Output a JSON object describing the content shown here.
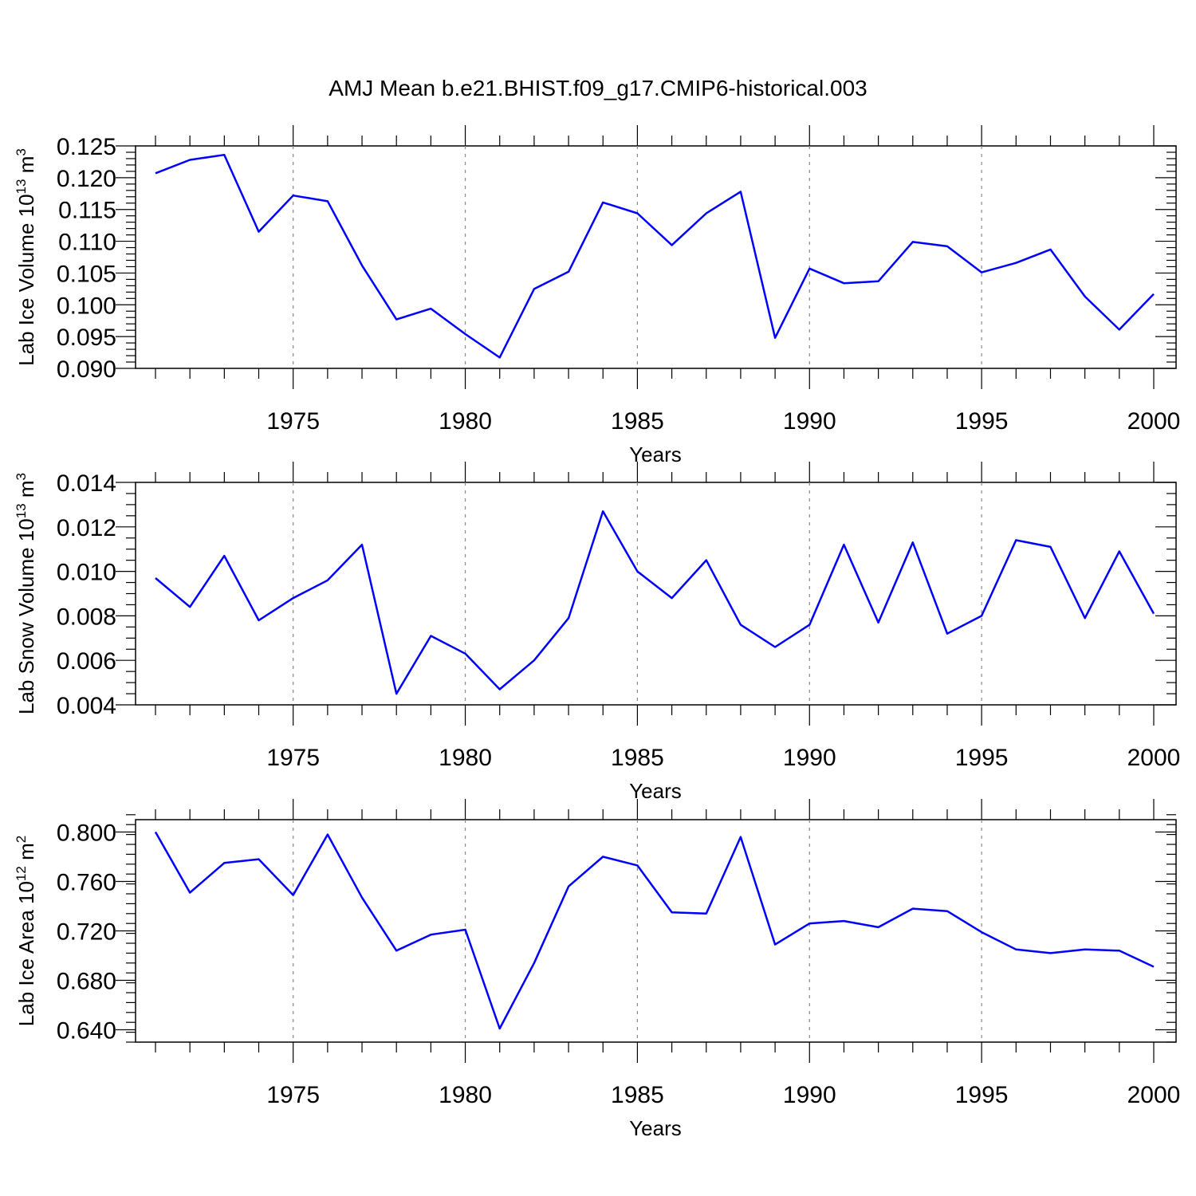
{
  "figure": {
    "title": "AMJ Mean b.e21.BHIST.f09_g17.CMIP6-historical.003"
  },
  "chart_data": [
    {
      "type": "line",
      "title": "AMJ Mean b.e21.BHIST.f09_g17.CMIP6-historical.003",
      "xlabel": "Years",
      "ylabel_main": "Lab Ice Volume 10",
      "ylabel_exp": "13",
      "ylabel_unit": " m",
      "ylabel_unit_exp": "3",
      "xlim": [
        1971,
        2000
      ],
      "ylim": [
        0.09,
        0.125
      ],
      "yticks": [
        0.09,
        0.095,
        0.1,
        0.105,
        0.11,
        0.115,
        0.12,
        0.125
      ],
      "ytick_labels": [
        "0.090",
        "0.095",
        "0.100",
        "0.105",
        "0.110",
        "0.115",
        "0.120",
        "0.125"
      ],
      "yminor_step": 0.001,
      "xticks": [
        1975,
        1980,
        1985,
        1990,
        1995,
        2000
      ],
      "xtick_labels": [
        "1975",
        "1980",
        "1985",
        "1990",
        "1995",
        "2000"
      ],
      "grid_x": true,
      "color": "#0000ff",
      "x": [
        1971,
        1972,
        1973,
        1974,
        1975,
        1976,
        1977,
        1978,
        1979,
        1980,
        1981,
        1982,
        1983,
        1984,
        1985,
        1986,
        1987,
        1988,
        1989,
        1990,
        1991,
        1992,
        1993,
        1994,
        1995,
        1996,
        1997,
        1998,
        1999,
        2000
      ],
      "y": [
        0.1207,
        0.1228,
        0.1236,
        0.1115,
        0.1172,
        0.1163,
        0.1062,
        0.0977,
        0.0994,
        0.0954,
        0.0917,
        0.1025,
        0.1052,
        0.1161,
        0.1144,
        0.1094,
        0.1144,
        0.1178,
        0.0948,
        0.1057,
        0.1034,
        0.1037,
        0.1099,
        0.1092,
        0.1051,
        0.1066,
        0.1087,
        0.1013,
        0.0961,
        0.1017
      ]
    },
    {
      "type": "line",
      "xlabel": "Years",
      "ylabel_main": "Lab Snow Volume 10",
      "ylabel_exp": "13",
      "ylabel_unit": " m",
      "ylabel_unit_exp": "3",
      "xlim": [
        1971,
        2000
      ],
      "ylim": [
        0.004,
        0.014
      ],
      "yticks": [
        0.004,
        0.006,
        0.008,
        0.01,
        0.012,
        0.014
      ],
      "ytick_labels": [
        "0.004",
        "0.006",
        "0.008",
        "0.010",
        "0.012",
        "0.014"
      ],
      "yminor_step": 0.0005,
      "xticks": [
        1975,
        1980,
        1985,
        1990,
        1995,
        2000
      ],
      "xtick_labels": [
        "1975",
        "1980",
        "1985",
        "1990",
        "1995",
        "2000"
      ],
      "grid_x": true,
      "color": "#0000ff",
      "x": [
        1971,
        1972,
        1973,
        1974,
        1975,
        1976,
        1977,
        1978,
        1979,
        1980,
        1981,
        1982,
        1983,
        1984,
        1985,
        1986,
        1987,
        1988,
        1989,
        1990,
        1991,
        1992,
        1993,
        1994,
        1995,
        1996,
        1997,
        1998,
        1999,
        2000
      ],
      "y": [
        0.0097,
        0.0084,
        0.0107,
        0.0078,
        0.0088,
        0.0096,
        0.0112,
        0.0045,
        0.0071,
        0.0063,
        0.0047,
        0.006,
        0.0079,
        0.0127,
        0.01,
        0.0088,
        0.0105,
        0.0076,
        0.0066,
        0.0076,
        0.0112,
        0.0077,
        0.0113,
        0.0072,
        0.008,
        0.0114,
        0.0111,
        0.0079,
        0.0109,
        0.0081
      ]
    },
    {
      "type": "line",
      "xlabel": "Years",
      "ylabel_main": "Lab Ice Area 10",
      "ylabel_exp": "12",
      "ylabel_unit": " m",
      "ylabel_unit_exp": "2",
      "xlim": [
        1971,
        2000
      ],
      "ylim": [
        0.63,
        0.81
      ],
      "yticks": [
        0.64,
        0.68,
        0.72,
        0.76,
        0.8
      ],
      "ytick_labels": [
        "0.640",
        "0.680",
        "0.720",
        "0.760",
        "0.800"
      ],
      "yminor_step": 0.008,
      "xticks": [
        1975,
        1980,
        1985,
        1990,
        1995,
        2000
      ],
      "xtick_labels": [
        "1975",
        "1980",
        "1985",
        "1990",
        "1995",
        "2000"
      ],
      "grid_x": true,
      "color": "#0000ff",
      "x": [
        1971,
        1972,
        1973,
        1974,
        1975,
        1976,
        1977,
        1978,
        1979,
        1980,
        1981,
        1982,
        1983,
        1984,
        1985,
        1986,
        1987,
        1988,
        1989,
        1990,
        1991,
        1992,
        1993,
        1994,
        1995,
        1996,
        1997,
        1998,
        1999,
        2000
      ],
      "y": [
        0.8,
        0.751,
        0.775,
        0.778,
        0.749,
        0.798,
        0.747,
        0.704,
        0.717,
        0.721,
        0.641,
        0.694,
        0.756,
        0.78,
        0.773,
        0.735,
        0.734,
        0.796,
        0.709,
        0.726,
        0.728,
        0.723,
        0.738,
        0.736,
        0.719,
        0.705,
        0.702,
        0.705,
        0.704,
        0.691
      ]
    }
  ]
}
